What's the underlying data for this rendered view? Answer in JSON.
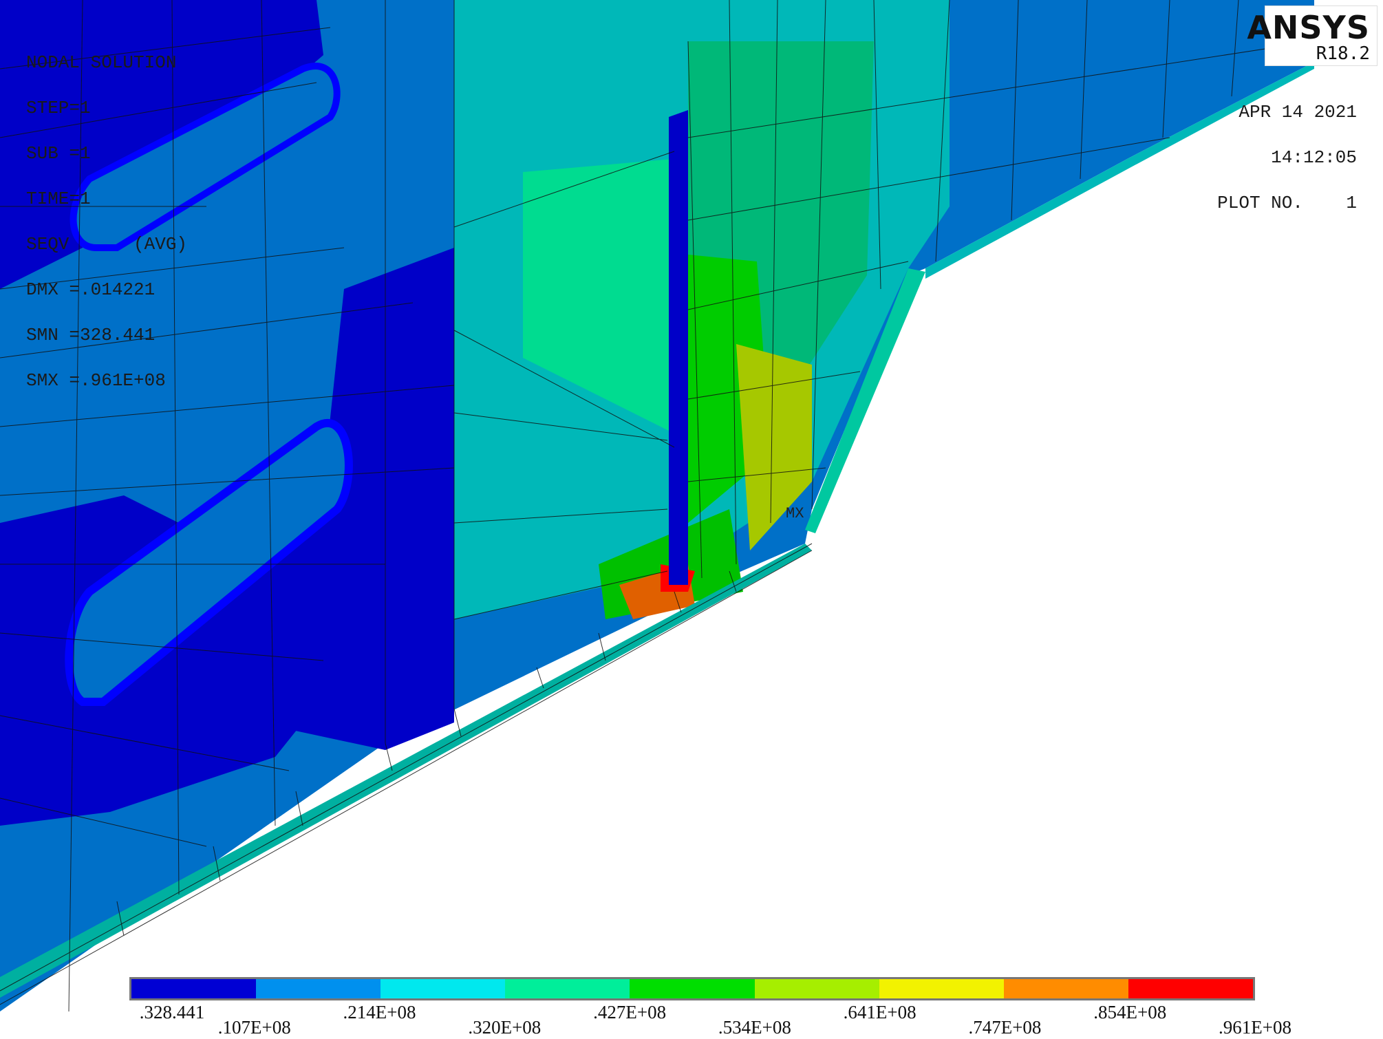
{
  "app": {
    "logo": "ANSYS",
    "version": "R18.2"
  },
  "solution_info": {
    "title": "NODAL SOLUTION",
    "step": "STEP=1",
    "sub": "SUB =1",
    "time": "TIME=1",
    "seqv": "SEQV      (AVG)",
    "dmx": "DMX =.014221",
    "smn": "SMN =328.441",
    "smx": "SMX =.961E+08"
  },
  "plot_info": {
    "date": "APR 14 2021",
    "time": "14:12:05",
    "plot_no": "PLOT NO.    1"
  },
  "max_marker": "MX",
  "legend": {
    "colors": [
      "#0000d4",
      "#0090ee",
      "#00e8ee",
      "#00ee9a",
      "#00de00",
      "#a6ee00",
      "#f2f200",
      "#ff8c00",
      "#ff0000"
    ],
    "labels": [
      ".328.441",
      ".107E+08",
      ".214E+08",
      ".320E+08",
      ".427E+08",
      ".534E+08",
      ".641E+08",
      ".747E+08",
      ".854E+08",
      ".961E+08"
    ]
  }
}
